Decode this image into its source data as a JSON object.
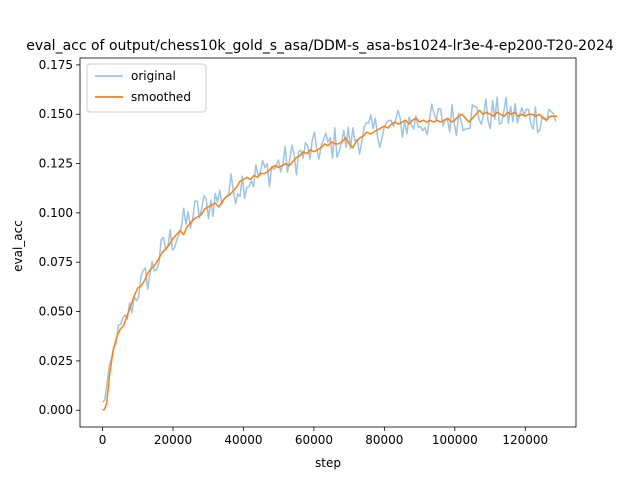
{
  "chart_data": {
    "type": "line",
    "title": "eval_acc of output/chess10k_gold_s_asa/DDM-s_asa-bs1024-lr3e-4-ep200-T20-2024",
    "xlabel": "step",
    "ylabel": "eval_acc",
    "xlim": [
      -6400,
      134400
    ],
    "ylim": [
      -0.0085,
      0.1785
    ],
    "xticks": [
      0,
      20000,
      40000,
      60000,
      80000,
      100000,
      120000
    ],
    "xtick_labels": [
      "0",
      "20000",
      "40000",
      "60000",
      "80000",
      "100000",
      "120000"
    ],
    "yticks": [
      0.0,
      0.025,
      0.05,
      0.075,
      0.1,
      0.125,
      0.15,
      0.175
    ],
    "ytick_labels": [
      "0.000",
      "0.025",
      "0.050",
      "0.075",
      "0.100",
      "0.125",
      "0.150",
      "0.175"
    ],
    "grid": false,
    "legend_position": "upper-left",
    "series": [
      {
        "name": "original",
        "color": "#9ec4e2",
        "x_start": 0,
        "x_step": 640,
        "y_trend": [
          [
            0,
            0.0
          ],
          [
            2000,
            0.02
          ],
          [
            4000,
            0.038
          ],
          [
            6000,
            0.044
          ],
          [
            8000,
            0.052
          ],
          [
            10000,
            0.061
          ],
          [
            14000,
            0.071
          ],
          [
            18000,
            0.083
          ],
          [
            22000,
            0.092
          ],
          [
            26000,
            0.099
          ],
          [
            30000,
            0.104
          ],
          [
            35000,
            0.11
          ],
          [
            40000,
            0.116
          ],
          [
            45000,
            0.12
          ],
          [
            50000,
            0.124
          ],
          [
            55000,
            0.128
          ],
          [
            60000,
            0.132
          ],
          [
            65000,
            0.135
          ],
          [
            70000,
            0.137
          ],
          [
            75000,
            0.14
          ],
          [
            80000,
            0.143
          ],
          [
            85000,
            0.145
          ],
          [
            90000,
            0.146
          ],
          [
            95000,
            0.147
          ],
          [
            100000,
            0.148
          ],
          [
            105000,
            0.15
          ],
          [
            110000,
            0.15
          ],
          [
            115000,
            0.15
          ],
          [
            120000,
            0.149
          ],
          [
            125000,
            0.149
          ],
          [
            129000,
            0.149
          ]
        ],
        "noise_amplitude": 0.009
      },
      {
        "name": "smoothed",
        "color": "#ff7f0e",
        "points": [
          [
            0,
            0.0
          ],
          [
            600,
            0.0005
          ],
          [
            1200,
            0.004
          ],
          [
            2000,
            0.018
          ],
          [
            3000,
            0.03
          ],
          [
            4000,
            0.037
          ],
          [
            5000,
            0.041
          ],
          [
            6000,
            0.043
          ],
          [
            7000,
            0.048
          ],
          [
            8000,
            0.053
          ],
          [
            9000,
            0.058
          ],
          [
            10000,
            0.062
          ],
          [
            11000,
            0.063
          ],
          [
            12000,
            0.066
          ],
          [
            13000,
            0.07
          ],
          [
            14000,
            0.072
          ],
          [
            15000,
            0.074
          ],
          [
            16000,
            0.077
          ],
          [
            17000,
            0.08
          ],
          [
            18000,
            0.082
          ],
          [
            19000,
            0.084
          ],
          [
            20000,
            0.087
          ],
          [
            21000,
            0.089
          ],
          [
            22000,
            0.091
          ],
          [
            23000,
            0.089
          ],
          [
            24000,
            0.093
          ],
          [
            25000,
            0.095
          ],
          [
            26000,
            0.097
          ],
          [
            27000,
            0.098
          ],
          [
            28000,
            0.099
          ],
          [
            29000,
            0.102
          ],
          [
            30000,
            0.103
          ],
          [
            31000,
            0.104
          ],
          [
            32000,
            0.105
          ],
          [
            33000,
            0.103
          ],
          [
            34000,
            0.106
          ],
          [
            35000,
            0.108
          ],
          [
            36000,
            0.109
          ],
          [
            37000,
            0.111
          ],
          [
            38000,
            0.113
          ],
          [
            39000,
            0.116
          ],
          [
            40000,
            0.117
          ],
          [
            41000,
            0.118
          ],
          [
            42000,
            0.117
          ],
          [
            43000,
            0.119
          ],
          [
            44000,
            0.118
          ],
          [
            45000,
            0.12
          ],
          [
            46000,
            0.12
          ],
          [
            47000,
            0.121
          ],
          [
            48000,
            0.123
          ],
          [
            49000,
            0.124
          ],
          [
            50000,
            0.123
          ],
          [
            51000,
            0.124
          ],
          [
            52000,
            0.125
          ],
          [
            53000,
            0.124
          ],
          [
            54000,
            0.126
          ],
          [
            55000,
            0.128
          ],
          [
            56000,
            0.129
          ],
          [
            57000,
            0.131
          ],
          [
            58000,
            0.13
          ],
          [
            59000,
            0.132
          ],
          [
            60000,
            0.131
          ],
          [
            61000,
            0.132
          ],
          [
            62000,
            0.133
          ],
          [
            63000,
            0.135
          ],
          [
            64000,
            0.134
          ],
          [
            65000,
            0.136
          ],
          [
            66000,
            0.135
          ],
          [
            67000,
            0.135
          ],
          [
            68000,
            0.136
          ],
          [
            69000,
            0.138
          ],
          [
            70000,
            0.135
          ],
          [
            71000,
            0.133
          ],
          [
            72000,
            0.136
          ],
          [
            73000,
            0.138
          ],
          [
            74000,
            0.139
          ],
          [
            75000,
            0.141
          ],
          [
            76000,
            0.14
          ],
          [
            77000,
            0.141
          ],
          [
            78000,
            0.142
          ],
          [
            79000,
            0.143
          ],
          [
            80000,
            0.144
          ],
          [
            81000,
            0.143
          ],
          [
            82000,
            0.145
          ],
          [
            83000,
            0.146
          ],
          [
            84000,
            0.145
          ],
          [
            85000,
            0.146
          ],
          [
            86000,
            0.147
          ],
          [
            87000,
            0.145
          ],
          [
            88000,
            0.147
          ],
          [
            89000,
            0.148
          ],
          [
            90000,
            0.146
          ],
          [
            91000,
            0.147
          ],
          [
            92000,
            0.146
          ],
          [
            93000,
            0.147
          ],
          [
            94000,
            0.146
          ],
          [
            95000,
            0.147
          ],
          [
            96000,
            0.146
          ],
          [
            97000,
            0.147
          ],
          [
            98000,
            0.148
          ],
          [
            99000,
            0.146
          ],
          [
            100000,
            0.147
          ],
          [
            101000,
            0.149
          ],
          [
            102000,
            0.15
          ],
          [
            103000,
            0.148
          ],
          [
            104000,
            0.146
          ],
          [
            105000,
            0.148
          ],
          [
            106000,
            0.15
          ],
          [
            107000,
            0.152
          ],
          [
            108000,
            0.15
          ],
          [
            109000,
            0.151
          ],
          [
            110000,
            0.15
          ],
          [
            111000,
            0.149
          ],
          [
            112000,
            0.151
          ],
          [
            113000,
            0.15
          ],
          [
            114000,
            0.149
          ],
          [
            115000,
            0.151
          ],
          [
            116000,
            0.15
          ],
          [
            117000,
            0.151
          ],
          [
            118000,
            0.149
          ],
          [
            119000,
            0.15
          ],
          [
            120000,
            0.149
          ],
          [
            121000,
            0.15
          ],
          [
            122000,
            0.15
          ],
          [
            123000,
            0.149
          ],
          [
            124000,
            0.15
          ],
          [
            125000,
            0.148
          ],
          [
            126000,
            0.147
          ],
          [
            127000,
            0.149
          ],
          [
            128000,
            0.149
          ],
          [
            129000,
            0.149
          ]
        ]
      }
    ]
  }
}
